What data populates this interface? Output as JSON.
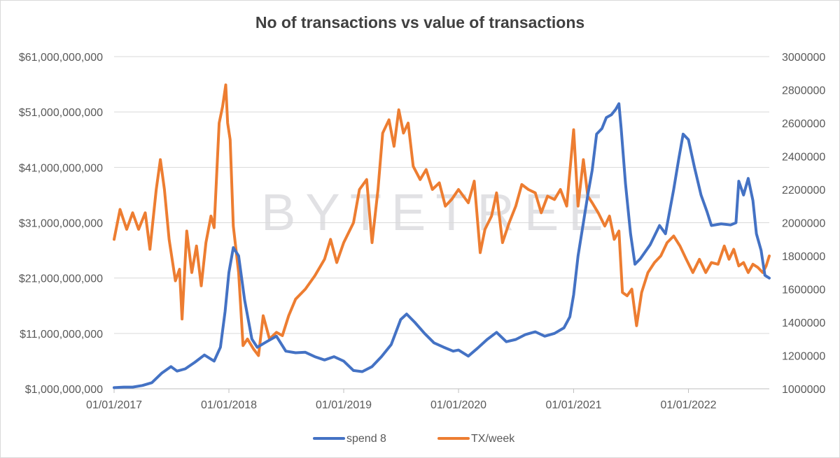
{
  "chart_data": {
    "type": "line",
    "title": "No of transactions vs value of transactions",
    "watermark": "BYTETREE",
    "x_tick_labels": [
      "01/01/2017",
      "01/01/2018",
      "01/01/2019",
      "01/01/2020",
      "01/01/2021",
      "01/01/2022"
    ],
    "y_left": {
      "range": [
        1000000000,
        61000000000
      ],
      "tick_labels": [
        "$1,000,000,000",
        "$11,000,000,000",
        "$21,000,000,000",
        "$31,000,000,000",
        "$41,000,000,000",
        "$51,000,000,000",
        "$61,000,000,000"
      ]
    },
    "y_right": {
      "range": [
        1000000,
        3000000
      ],
      "tick_labels": [
        "1000000",
        "1200000",
        "1400000",
        "1600000",
        "1800000",
        "2000000",
        "2200000",
        "2400000",
        "2600000",
        "2800000",
        "3000000"
      ]
    },
    "x_range": [
      "2017-01-01",
      "2022-09-15"
    ],
    "grid": true,
    "legend_position": "bottom",
    "series": [
      {
        "name": "spend 8",
        "axis": "left",
        "color": "#4472C4",
        "points": [
          [
            "2017-01-01",
            1200000000.0
          ],
          [
            "2017-02-01",
            1300000000.0
          ],
          [
            "2017-03-01",
            1300000000.0
          ],
          [
            "2017-04-01",
            1600000000.0
          ],
          [
            "2017-05-01",
            2100000000.0
          ],
          [
            "2017-06-01",
            3800000000.0
          ],
          [
            "2017-07-01",
            5000000000.0
          ],
          [
            "2017-07-20",
            4200000000.0
          ],
          [
            "2017-08-15",
            4600000000.0
          ],
          [
            "2017-09-15",
            5800000000.0
          ],
          [
            "2017-10-15",
            7100000000.0
          ],
          [
            "2017-11-15",
            6000000000.0
          ],
          [
            "2017-12-05",
            8500000000.0
          ],
          [
            "2017-12-20",
            15000000000.0
          ],
          [
            "2018-01-01",
            22000000000.0
          ],
          [
            "2018-01-15",
            26500000000.0
          ],
          [
            "2018-02-01",
            25000000000.0
          ],
          [
            "2018-02-20",
            17000000000.0
          ],
          [
            "2018-03-15",
            10000000000.0
          ],
          [
            "2018-04-01",
            8500000000.0
          ],
          [
            "2018-05-01",
            9500000000.0
          ],
          [
            "2018-06-01",
            10500000000.0
          ],
          [
            "2018-07-01",
            7800000000.0
          ],
          [
            "2018-08-01",
            7500000000.0
          ],
          [
            "2018-09-01",
            7600000000.0
          ],
          [
            "2018-10-01",
            6800000000.0
          ],
          [
            "2018-11-01",
            6200000000.0
          ],
          [
            "2018-12-01",
            6800000000.0
          ],
          [
            "2019-01-01",
            6000000000.0
          ],
          [
            "2019-02-01",
            4300000000.0
          ],
          [
            "2019-03-01",
            4100000000.0
          ],
          [
            "2019-04-01",
            5000000000.0
          ],
          [
            "2019-05-01",
            6800000000.0
          ],
          [
            "2019-06-01",
            9000000000.0
          ],
          [
            "2019-07-01",
            13500000000.0
          ],
          [
            "2019-07-20",
            14500000000.0
          ],
          [
            "2019-08-15",
            13000000000.0
          ],
          [
            "2019-09-15",
            11000000000.0
          ],
          [
            "2019-10-15",
            9300000000.0
          ],
          [
            "2019-11-15",
            8500000000.0
          ],
          [
            "2019-12-15",
            7800000000.0
          ],
          [
            "2020-01-01",
            8000000000.0
          ],
          [
            "2020-02-01",
            6900000000.0
          ],
          [
            "2020-03-01",
            8300000000.0
          ],
          [
            "2020-04-01",
            9900000000.0
          ],
          [
            "2020-05-01",
            11200000000.0
          ],
          [
            "2020-06-01",
            9500000000.0
          ],
          [
            "2020-07-01",
            9900000000.0
          ],
          [
            "2020-08-01",
            10800000000.0
          ],
          [
            "2020-09-01",
            11300000000.0
          ],
          [
            "2020-10-01",
            10500000000.0
          ],
          [
            "2020-11-01",
            11000000000.0
          ],
          [
            "2020-12-01",
            12000000000.0
          ],
          [
            "2020-12-20",
            14000000000.0
          ],
          [
            "2021-01-01",
            18000000000.0
          ],
          [
            "2021-01-15",
            25000000000.0
          ],
          [
            "2021-02-01",
            31000000000.0
          ],
          [
            "2021-02-15",
            36000000000.0
          ],
          [
            "2021-03-01",
            40500000000.0
          ],
          [
            "2021-03-15",
            47000000000.0
          ],
          [
            "2021-04-01",
            48000000000.0
          ],
          [
            "2021-04-15",
            50000000000.0
          ],
          [
            "2021-05-01",
            50500000000.0
          ],
          [
            "2021-05-15",
            51500000000.0
          ],
          [
            "2021-05-25",
            52500000000.0
          ],
          [
            "2021-06-01",
            48000000000.0
          ],
          [
            "2021-06-15",
            38000000000.0
          ],
          [
            "2021-07-01",
            29000000000.0
          ],
          [
            "2021-07-15",
            23500000000.0
          ],
          [
            "2021-08-01",
            24500000000.0
          ],
          [
            "2021-09-01",
            27000000000.0
          ],
          [
            "2021-10-01",
            30500000000.0
          ],
          [
            "2021-10-20",
            29000000000.0
          ],
          [
            "2021-11-15",
            37000000000.0
          ],
          [
            "2021-12-01",
            42500000000.0
          ],
          [
            "2021-12-15",
            47000000000.0
          ],
          [
            "2022-01-01",
            46000000000.0
          ],
          [
            "2022-01-20",
            41000000000.0
          ],
          [
            "2022-02-10",
            36000000000.0
          ],
          [
            "2022-03-01",
            33000000000.0
          ],
          [
            "2022-03-15",
            30500000000.0
          ],
          [
            "2022-04-15",
            30800000000.0
          ],
          [
            "2022-05-15",
            30600000000.0
          ],
          [
            "2022-06-01",
            31000000000.0
          ],
          [
            "2022-06-10",
            38500000000.0
          ],
          [
            "2022-06-25",
            36000000000.0
          ],
          [
            "2022-07-10",
            39000000000.0
          ],
          [
            "2022-07-25",
            35000000000.0
          ],
          [
            "2022-08-05",
            29000000000.0
          ],
          [
            "2022-08-20",
            26000000000.0
          ],
          [
            "2022-09-01",
            21500000000.0
          ],
          [
            "2022-09-15",
            21000000000.0
          ]
        ]
      },
      {
        "name": "TX/week",
        "axis": "right",
        "color": "#ED7D31",
        "points": [
          [
            "2017-01-01",
            1900000
          ],
          [
            "2017-01-20",
            2080000
          ],
          [
            "2017-02-10",
            1960000
          ],
          [
            "2017-03-01",
            2060000
          ],
          [
            "2017-03-20",
            1960000
          ],
          [
            "2017-04-10",
            2060000
          ],
          [
            "2017-04-25",
            1840000
          ],
          [
            "2017-05-15",
            2200000
          ],
          [
            "2017-05-28",
            2380000
          ],
          [
            "2017-06-10",
            2200000
          ],
          [
            "2017-06-25",
            1900000
          ],
          [
            "2017-07-15",
            1650000
          ],
          [
            "2017-07-28",
            1720000
          ],
          [
            "2017-08-05",
            1420000
          ],
          [
            "2017-08-20",
            1950000
          ],
          [
            "2017-09-05",
            1700000
          ],
          [
            "2017-09-20",
            1860000
          ],
          [
            "2017-10-05",
            1620000
          ],
          [
            "2017-10-20",
            1880000
          ],
          [
            "2017-11-05",
            2040000
          ],
          [
            "2017-11-15",
            1970000
          ],
          [
            "2017-12-01",
            2600000
          ],
          [
            "2017-12-12",
            2700000
          ],
          [
            "2017-12-22",
            2830000
          ],
          [
            "2017-12-28",
            2600000
          ],
          [
            "2018-01-05",
            2500000
          ],
          [
            "2018-01-15",
            1980000
          ],
          [
            "2018-02-01",
            1700000
          ],
          [
            "2018-02-15",
            1260000
          ],
          [
            "2018-03-01",
            1300000
          ],
          [
            "2018-03-20",
            1240000
          ],
          [
            "2018-04-05",
            1200000
          ],
          [
            "2018-04-20",
            1440000
          ],
          [
            "2018-05-10",
            1300000
          ],
          [
            "2018-06-01",
            1340000
          ],
          [
            "2018-06-20",
            1320000
          ],
          [
            "2018-07-10",
            1440000
          ],
          [
            "2018-08-01",
            1540000
          ],
          [
            "2018-09-01",
            1600000
          ],
          [
            "2018-10-01",
            1680000
          ],
          [
            "2018-11-01",
            1780000
          ],
          [
            "2018-11-20",
            1900000
          ],
          [
            "2018-12-10",
            1760000
          ],
          [
            "2019-01-01",
            1880000
          ],
          [
            "2019-02-01",
            2000000
          ],
          [
            "2019-02-20",
            2200000
          ],
          [
            "2019-03-15",
            2260000
          ],
          [
            "2019-04-01",
            1880000
          ],
          [
            "2019-04-20",
            2200000
          ],
          [
            "2019-05-05",
            2540000
          ],
          [
            "2019-05-25",
            2620000
          ],
          [
            "2019-06-10",
            2460000
          ],
          [
            "2019-06-25",
            2680000
          ],
          [
            "2019-07-10",
            2540000
          ],
          [
            "2019-07-25",
            2600000
          ],
          [
            "2019-08-10",
            2340000
          ],
          [
            "2019-09-01",
            2260000
          ],
          [
            "2019-09-20",
            2320000
          ],
          [
            "2019-10-10",
            2200000
          ],
          [
            "2019-11-01",
            2240000
          ],
          [
            "2019-11-20",
            2100000
          ],
          [
            "2019-12-10",
            2140000
          ],
          [
            "2020-01-01",
            2200000
          ],
          [
            "2020-02-01",
            2120000
          ],
          [
            "2020-02-20",
            2250000
          ],
          [
            "2020-03-10",
            1820000
          ],
          [
            "2020-03-25",
            1960000
          ],
          [
            "2020-04-15",
            2040000
          ],
          [
            "2020-05-01",
            2180000
          ],
          [
            "2020-05-20",
            1880000
          ],
          [
            "2020-06-10",
            2000000
          ],
          [
            "2020-07-01",
            2100000
          ],
          [
            "2020-07-20",
            2230000
          ],
          [
            "2020-08-10",
            2200000
          ],
          [
            "2020-09-01",
            2180000
          ],
          [
            "2020-09-20",
            2060000
          ],
          [
            "2020-10-10",
            2160000
          ],
          [
            "2020-11-01",
            2140000
          ],
          [
            "2020-11-20",
            2200000
          ],
          [
            "2020-12-10",
            2100000
          ],
          [
            "2021-01-01",
            2560000
          ],
          [
            "2021-01-15",
            2100000
          ],
          [
            "2021-02-01",
            2380000
          ],
          [
            "2021-02-15",
            2160000
          ],
          [
            "2021-03-01",
            2120000
          ],
          [
            "2021-03-20",
            2060000
          ],
          [
            "2021-04-10",
            1980000
          ],
          [
            "2021-04-25",
            2040000
          ],
          [
            "2021-05-10",
            1900000
          ],
          [
            "2021-05-25",
            1950000
          ],
          [
            "2021-06-05",
            1580000
          ],
          [
            "2021-06-20",
            1560000
          ],
          [
            "2021-07-05",
            1600000
          ],
          [
            "2021-07-20",
            1380000
          ],
          [
            "2021-08-05",
            1580000
          ],
          [
            "2021-08-25",
            1700000
          ],
          [
            "2021-09-15",
            1760000
          ],
          [
            "2021-10-05",
            1800000
          ],
          [
            "2021-10-25",
            1880000
          ],
          [
            "2021-11-15",
            1920000
          ],
          [
            "2021-12-05",
            1860000
          ],
          [
            "2021-12-25",
            1780000
          ],
          [
            "2022-01-15",
            1700000
          ],
          [
            "2022-02-05",
            1780000
          ],
          [
            "2022-02-25",
            1700000
          ],
          [
            "2022-03-15",
            1760000
          ],
          [
            "2022-04-05",
            1750000
          ],
          [
            "2022-04-25",
            1860000
          ],
          [
            "2022-05-10",
            1780000
          ],
          [
            "2022-05-25",
            1840000
          ],
          [
            "2022-06-10",
            1740000
          ],
          [
            "2022-06-25",
            1760000
          ],
          [
            "2022-07-10",
            1700000
          ],
          [
            "2022-07-25",
            1750000
          ],
          [
            "2022-08-10",
            1730000
          ],
          [
            "2022-08-25",
            1700000
          ],
          [
            "2022-09-05",
            1740000
          ],
          [
            "2022-09-15",
            1800000
          ]
        ]
      }
    ]
  }
}
